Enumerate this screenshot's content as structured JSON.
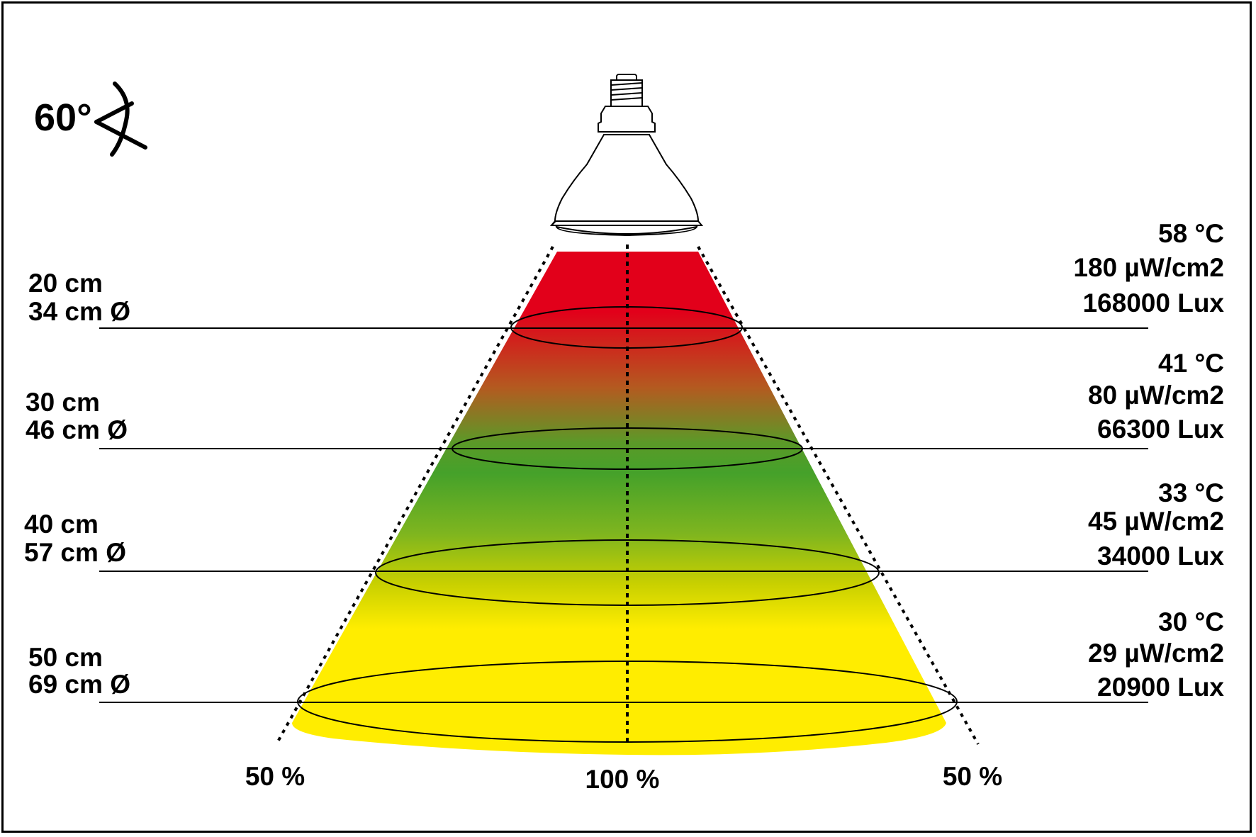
{
  "beam_angle": {
    "value": "60°"
  },
  "distances": [
    {
      "distance": "20 cm",
      "diameter": "34 cm Ø",
      "temperature": "58 °C",
      "uv": "180 µW/cm2",
      "lux": "168000 Lux"
    },
    {
      "distance": "30 cm",
      "diameter": "46 cm Ø",
      "temperature": "41 °C",
      "uv": "80 µW/cm2",
      "lux": "66300 Lux"
    },
    {
      "distance": "40 cm",
      "diameter": "57 cm Ø",
      "temperature": "33 °C",
      "uv": "45 µW/cm2",
      "lux": "34000 Lux"
    },
    {
      "distance": "50 cm",
      "diameter": "69 cm Ø",
      "temperature": "30 °C",
      "uv": "29 µW/cm2",
      "lux": "20900 Lux"
    }
  ],
  "intensity": {
    "left": "50 %",
    "center": "100 %",
    "right": "50 %"
  },
  "colors": {
    "hot": "#e2001a",
    "warm": "#45a12a",
    "cool": "#ffed00",
    "line": "#000000"
  }
}
